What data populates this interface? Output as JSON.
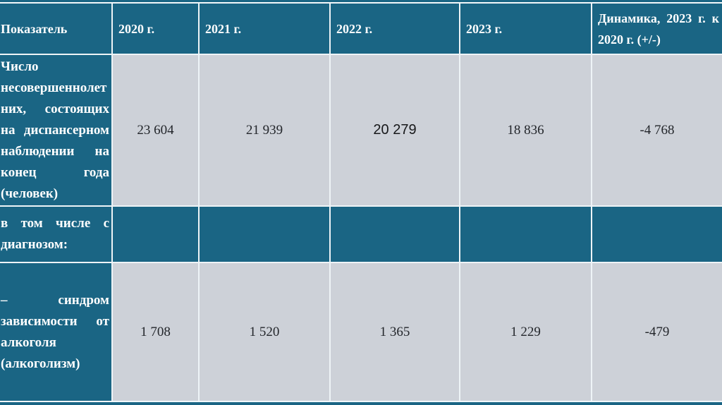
{
  "theme": {
    "teal": "#1a6584",
    "cell_gray": "#cdd1d8",
    "grid_line": "#eef4f7",
    "header_text_color": "#ffffff",
    "value_text_color": "#23262b"
  },
  "table": {
    "columns": [
      {
        "label": "Показатель"
      },
      {
        "label": "2020 г."
      },
      {
        "label": "2021 г."
      },
      {
        "label": "2022 г."
      },
      {
        "label": "2023 г."
      },
      {
        "label": "Динамика, 2023 г. к 2020 г. (+/-)"
      }
    ],
    "rows": [
      {
        "label": "Число несовершеннолетних, состоящих на диспансерном наблюдении на конец года (человек)",
        "values": [
          "23 604",
          "21 939",
          "20 279",
          "18 836",
          "-4 768"
        ]
      },
      {
        "label": "в том числе с диагнозом:",
        "values": [
          "",
          "",
          "",
          "",
          ""
        ]
      },
      {
        "label": "– синдром зависимости от алкоголя (алкоголизм)",
        "values": [
          "1 708",
          "1 520",
          "1 365",
          "1 229",
          "-479"
        ]
      }
    ]
  }
}
